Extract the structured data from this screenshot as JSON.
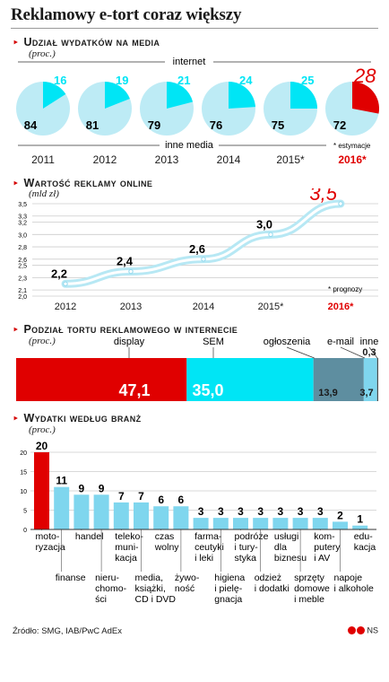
{
  "title": "Reklamowy e-tort coraz większy",
  "source": "Źródło: SMG, IAB/PwC AdEx",
  "logo_text": "NS",
  "colors": {
    "red": "#e00000",
    "cyan": "#00e5f5",
    "light_blue": "#bdebf5",
    "bar_blue": "#7fd6ee",
    "dark_gray": "#4a4a4a",
    "steel": "#5e8ea0"
  },
  "chart_data": [
    {
      "type": "pie",
      "section_title": "Udział wydatków na media",
      "unit": "(proc.)",
      "top_label": "internet",
      "bottom_label": "inne media",
      "note": "* estymacje",
      "series": [
        {
          "year": "2011",
          "internet": 16,
          "other": 84
        },
        {
          "year": "2012",
          "internet": 19,
          "other": 81
        },
        {
          "year": "2013",
          "internet": 21,
          "other": 79
        },
        {
          "year": "2014",
          "internet": 24,
          "other": 76
        },
        {
          "year": "2015*",
          "internet": 25,
          "other": 75
        },
        {
          "year": "2016*",
          "internet": 28,
          "other": 72
        }
      ]
    },
    {
      "type": "line",
      "section_title": "Wartość reklamy online",
      "unit": "(mld zł)",
      "note": "* prognozy",
      "x": [
        "2012",
        "2013",
        "2014",
        "2015*",
        "2016*"
      ],
      "values": [
        2.2,
        2.4,
        2.6,
        3.0,
        3.5
      ],
      "value_labels": [
        "2,2",
        "2,4",
        "2,6",
        "3,0",
        "3,5"
      ],
      "y_ticks": [
        "2,0",
        "2,1",
        "2,3",
        "2,5",
        "2,6",
        "2,8",
        "3,0",
        "3,2",
        "3,3",
        "3,5"
      ],
      "ylim": [
        2.0,
        3.5
      ]
    },
    {
      "type": "bar",
      "section_title": "Podział tortu reklamowego w internecie",
      "unit": "(proc.)",
      "categories": [
        "display",
        "SEM",
        "ogłoszenia",
        "e-mail",
        "inne"
      ],
      "values": [
        47.1,
        35.0,
        13.9,
        3.7,
        0.3
      ],
      "value_labels": [
        "47,1",
        "35,0",
        "13,9",
        "3,7",
        "0,3"
      ]
    },
    {
      "type": "bar",
      "section_title": "Wydatki według branż",
      "unit": "(proc.)",
      "y_ticks": [
        "0",
        "5",
        "10",
        "15",
        "20"
      ],
      "ylim": [
        0,
        20
      ],
      "categories": [
        "moto-\nryzacja",
        "finanse",
        "handel",
        "nieru-\nchomo-\nści",
        "teleko-\nmuni-\nkacja",
        "media,\nksiążki,\nCD i DVD",
        "czas\nwolny",
        "żywo-\nność",
        "farma-\nceutyki\ni leki",
        "higiena\ni pielę-\ngnacja",
        "podróże\ni tury-\nstyka",
        "odzież\ni dodatki",
        "usługi\ndla\nbiznesu",
        "sprzęty\ndomowe\ni meble",
        "kom-\nputery\ni AV",
        "napoje\ni alkohole",
        "edu-\nkacja"
      ],
      "values": [
        20,
        11,
        9,
        9,
        7,
        7,
        6,
        6,
        3,
        3,
        3,
        3,
        3,
        3,
        3,
        2,
        1
      ]
    }
  ]
}
